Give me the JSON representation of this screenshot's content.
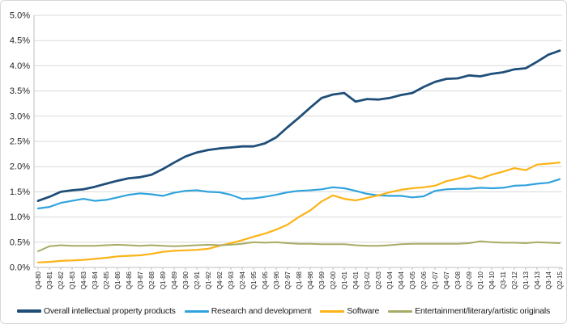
{
  "chart_data": {
    "type": "line",
    "title": "",
    "xlabel": "",
    "ylabel": "",
    "ylim": [
      0,
      5
    ],
    "y_step": 0.5,
    "grid": "horizontal",
    "legend_position": "bottom",
    "x_tick_rotation": -90,
    "y_tick_labels": [
      "0.0%",
      "0.5%",
      "1.0%",
      "1.5%",
      "2.0%",
      "2.5%",
      "3.0%",
      "3.5%",
      "4.0%",
      "4.5%",
      "5.0%"
    ],
    "categories": [
      "Q4-80",
      "Q3-81",
      "Q2-82",
      "Q1-83",
      "Q4-83",
      "Q3-84",
      "Q2-85",
      "Q1-86",
      "Q4-86",
      "Q3-87",
      "Q2-88",
      "Q1-89",
      "Q4-89",
      "Q3-90",
      "Q2-91",
      "Q1-92",
      "Q4-92",
      "Q3-93",
      "Q2-94",
      "Q1-95",
      "Q4-95",
      "Q3-96",
      "Q2-97",
      "Q1-98",
      "Q4-98",
      "Q3-99",
      "Q2-00",
      "Q1-01",
      "Q4-01",
      "Q3-02",
      "Q2-03",
      "Q1-04",
      "Q4-04",
      "Q3-05",
      "Q2-06",
      "Q1-07",
      "Q4-07",
      "Q3-08",
      "Q2-09",
      "Q1-10",
      "Q4-10",
      "Q3-11",
      "Q2-12",
      "Q1-13",
      "Q4-13",
      "Q3-14",
      "Q2-15"
    ],
    "series": [
      {
        "name": "Overall intellectual property products",
        "color": "#1F4E79",
        "stroke_width": 2.8,
        "values": [
          1.32,
          1.4,
          1.5,
          1.53,
          1.55,
          1.6,
          1.66,
          1.72,
          1.77,
          1.79,
          1.84,
          1.95,
          2.08,
          2.2,
          2.28,
          2.33,
          2.36,
          2.38,
          2.4,
          2.4,
          2.46,
          2.58,
          2.78,
          2.97,
          3.17,
          3.36,
          3.43,
          3.46,
          3.29,
          3.34,
          3.33,
          3.36,
          3.42,
          3.46,
          3.58,
          3.68,
          3.74,
          3.75,
          3.81,
          3.79,
          3.84,
          3.87,
          3.93,
          3.95,
          4.08,
          4.22,
          4.3
        ]
      },
      {
        "name": "Research and development",
        "color": "#30A3DC",
        "stroke_width": 2.2,
        "values": [
          1.17,
          1.2,
          1.28,
          1.32,
          1.36,
          1.32,
          1.34,
          1.39,
          1.44,
          1.47,
          1.45,
          1.42,
          1.48,
          1.52,
          1.53,
          1.5,
          1.49,
          1.44,
          1.36,
          1.37,
          1.4,
          1.44,
          1.49,
          1.52,
          1.53,
          1.55,
          1.59,
          1.57,
          1.52,
          1.46,
          1.43,
          1.42,
          1.42,
          1.39,
          1.41,
          1.52,
          1.55,
          1.56,
          1.56,
          1.58,
          1.57,
          1.58,
          1.62,
          1.63,
          1.66,
          1.68,
          1.75
        ]
      },
      {
        "name": "Software",
        "color": "#FCB316",
        "stroke_width": 2.2,
        "values": [
          0.1,
          0.11,
          0.13,
          0.14,
          0.15,
          0.17,
          0.19,
          0.22,
          0.23,
          0.24,
          0.27,
          0.31,
          0.33,
          0.34,
          0.35,
          0.37,
          0.43,
          0.48,
          0.54,
          0.61,
          0.67,
          0.75,
          0.85,
          1.0,
          1.13,
          1.31,
          1.43,
          1.36,
          1.33,
          1.38,
          1.43,
          1.49,
          1.54,
          1.57,
          1.59,
          1.62,
          1.71,
          1.76,
          1.82,
          1.76,
          1.84,
          1.9,
          1.97,
          1.93,
          2.04,
          2.06,
          2.08
        ]
      },
      {
        "name": "Entertainment/literary/artistic originals",
        "color": "#A8AB66",
        "stroke_width": 2.0,
        "values": [
          0.32,
          0.42,
          0.44,
          0.43,
          0.43,
          0.43,
          0.44,
          0.45,
          0.44,
          0.43,
          0.44,
          0.43,
          0.42,
          0.43,
          0.44,
          0.45,
          0.44,
          0.45,
          0.47,
          0.5,
          0.49,
          0.5,
          0.48,
          0.47,
          0.47,
          0.46,
          0.46,
          0.46,
          0.44,
          0.43,
          0.43,
          0.44,
          0.46,
          0.47,
          0.47,
          0.47,
          0.47,
          0.47,
          0.48,
          0.52,
          0.5,
          0.49,
          0.49,
          0.48,
          0.5,
          0.49,
          0.48
        ]
      }
    ]
  },
  "colors": {
    "background": "#FFFFFF",
    "border": "#D7D7D7",
    "gridline": "#D9D9D9",
    "axis": "#BFBFBF",
    "tick_text": "#262626"
  }
}
